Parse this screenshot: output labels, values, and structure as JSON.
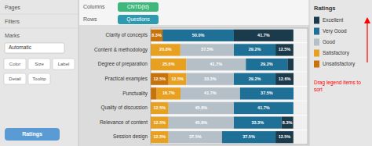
{
  "chart_data": {
    "type": "bar",
    "orientation": "horizontal",
    "stacked": true,
    "data_labels": true,
    "tick_labels": "y",
    "grid": false,
    "xlim": [
      0,
      110
    ],
    "categories": [
      "Clarity of concepts",
      "Content & methodology",
      "Degree of preparation",
      "Practical examples",
      "Punctuality",
      "Quality of discussion",
      "Relevance of content",
      "Session design"
    ],
    "series": [
      {
        "name": "Unsatisfactory",
        "color": "#c8720a",
        "values": [
          8.3,
          0.0,
          0.0,
          12.5,
          4.2,
          0.0,
          0.0,
          0.0
        ],
        "value_labels": [
          "8.3%",
          null,
          null,
          "12.5%",
          null,
          null,
          null,
          null
        ]
      },
      {
        "name": "Satisfactory",
        "color": "#e8a020",
        "values": [
          0.0,
          20.8,
          25.0,
          12.5,
          16.7,
          12.5,
          12.5,
          12.5
        ],
        "value_labels": [
          null,
          "20.8%",
          "25.0%",
          "12.5%",
          "16.7%",
          "12.5%",
          "12.5%",
          "12.5%"
        ]
      },
      {
        "name": "Good",
        "color": "#b5bfc8",
        "values": [
          0.0,
          37.5,
          41.7,
          33.3,
          41.7,
          45.8,
          45.8,
          37.5
        ],
        "value_labels": [
          null,
          "37.5%",
          "41.7%",
          "33.3%",
          "41.7%",
          "45.8%",
          "45.8%",
          "37.5%"
        ]
      },
      {
        "name": "Very Good",
        "color": "#1e7096",
        "values": [
          50.0,
          29.2,
          29.2,
          29.2,
          37.5,
          41.7,
          33.3,
          37.5
        ],
        "value_labels": [
          "50.0%",
          "29.2%",
          "29.2%",
          "29.2%",
          "37.5%",
          "41.7%",
          "33.3%",
          "37.5%"
        ]
      },
      {
        "name": "Excellent",
        "color": "#1b3a4b",
        "values": [
          41.7,
          12.5,
          4.2,
          12.6,
          0.0,
          0.0,
          8.3,
          12.5
        ],
        "value_labels": [
          "41.7%",
          "12.5%",
          null,
          "12.6%",
          null,
          null,
          "8.3%",
          "12.5%"
        ]
      }
    ],
    "annotations": [
      "Pages",
      "Filters",
      "Marks",
      "Automatic",
      "Color",
      "Size",
      "Label",
      "Detail",
      "Tooltip",
      "Ratings",
      "Columns",
      "CNTD(Id)",
      "Rows",
      "Questions",
      "Ratings",
      "Drag legend items to\nsort"
    ]
  }
}
